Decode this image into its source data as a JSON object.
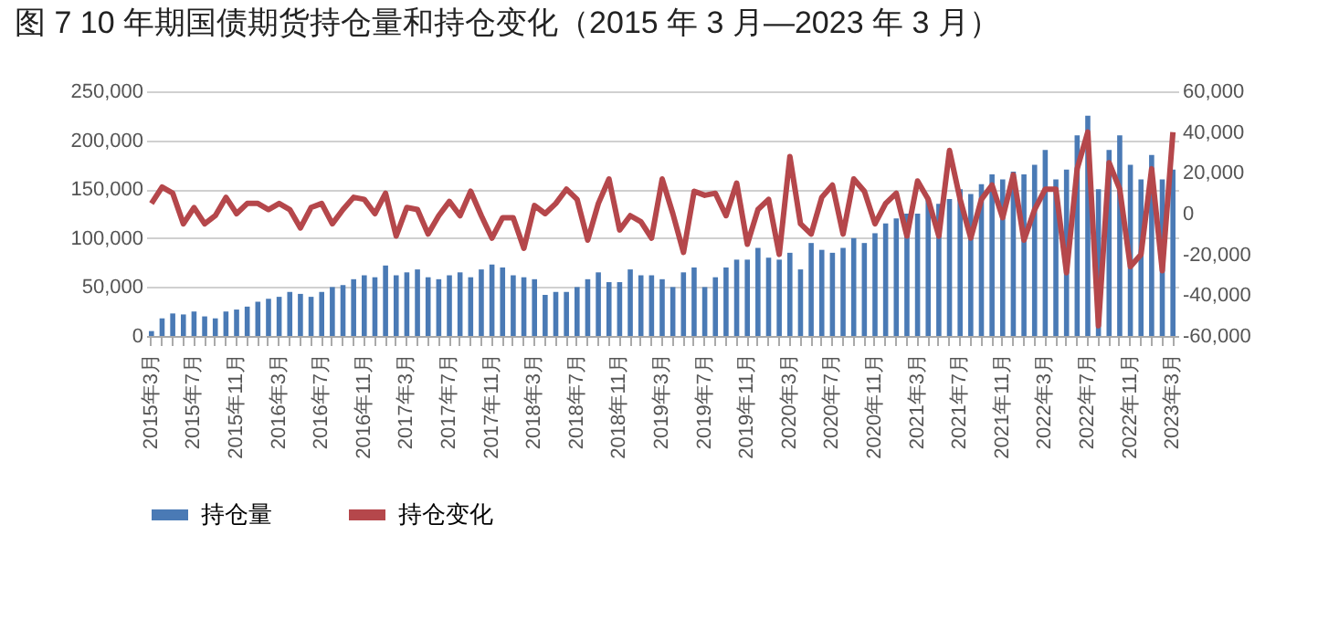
{
  "chart_data": {
    "type": "bar",
    "title": "图 7 10 年期国债期货持仓量和持仓变化（2015 年 3 月—2023 年 3 月）",
    "categories": [
      "2015年3月",
      null,
      null,
      null,
      "2015年7月",
      null,
      null,
      null,
      "2015年11月",
      null,
      null,
      null,
      "2016年3月",
      null,
      null,
      null,
      "2016年7月",
      null,
      null,
      null,
      "2016年11月",
      null,
      null,
      null,
      "2017年3月",
      null,
      null,
      null,
      "2017年7月",
      null,
      null,
      null,
      "2017年11月",
      null,
      null,
      null,
      "2018年3月",
      null,
      null,
      null,
      "2018年7月",
      null,
      null,
      null,
      "2018年11月",
      null,
      null,
      null,
      "2019年3月",
      null,
      null,
      null,
      "2019年7月",
      null,
      null,
      null,
      "2019年11月",
      null,
      null,
      null,
      "2020年3月",
      null,
      null,
      null,
      "2020年7月",
      null,
      null,
      null,
      "2020年11月",
      null,
      null,
      null,
      "2021年3月",
      null,
      null,
      null,
      "2021年7月",
      null,
      null,
      null,
      "2021年11月",
      null,
      null,
      null,
      "2022年3月",
      null,
      null,
      null,
      "2022年7月",
      null,
      null,
      null,
      "2022年11月",
      null,
      null,
      null,
      "2023年3月"
    ],
    "series": [
      {
        "name": "持仓量",
        "color": "#4a7ab5",
        "values": [
          5000,
          18000,
          23000,
          22000,
          25000,
          20000,
          18000,
          25000,
          27000,
          30000,
          35000,
          38000,
          40000,
          45000,
          43000,
          40000,
          45000,
          50000,
          52000,
          58000,
          62000,
          60000,
          72000,
          62000,
          65000,
          68000,
          60000,
          58000,
          62000,
          65000,
          60000,
          68000,
          73000,
          70000,
          62000,
          60000,
          58000,
          42000,
          45000,
          45000,
          50000,
          58000,
          65000,
          55000,
          55000,
          68000,
          62000,
          62000,
          58000,
          50000,
          65000,
          70000,
          50000,
          60000,
          70000,
          78000,
          78000,
          90000,
          80000,
          78000,
          85000,
          68000,
          95000,
          88000,
          85000,
          90000,
          100000,
          95000,
          105000,
          115000,
          120000,
          125000,
          125000,
          140000,
          135000,
          140000,
          150000,
          145000,
          155000,
          165000,
          160000,
          168000,
          165000,
          175000,
          190000,
          160000,
          170000,
          205000,
          225000,
          150000,
          190000,
          205000,
          175000,
          160000,
          185000,
          160000,
          170000
        ]
      },
      {
        "name": "持仓变化",
        "type": "line",
        "axis": "y2",
        "color": "#b5474b",
        "values": [
          5000,
          13000,
          10000,
          -5000,
          3000,
          -5000,
          -1000,
          8000,
          0,
          5000,
          5000,
          2000,
          5000,
          2000,
          -7000,
          3000,
          5000,
          -5000,
          2000,
          8000,
          7000,
          0,
          10000,
          -11000,
          3000,
          2000,
          -10000,
          -1000,
          6000,
          -1000,
          11000,
          -1000,
          -12000,
          -2000,
          -2000,
          -17000,
          4000,
          0,
          5000,
          12000,
          7000,
          -13000,
          5000,
          17000,
          -8000,
          -1000,
          -4000,
          -12000,
          17000,
          0,
          -19000,
          11000,
          9000,
          10000,
          -1000,
          15000,
          -15000,
          2000,
          7000,
          -20000,
          28000,
          -5000,
          -10000,
          8000,
          14000,
          -10000,
          17000,
          11000,
          -5000,
          5000,
          10000,
          -11000,
          16000,
          7000,
          -11000,
          31000,
          7000,
          -12000,
          7000,
          14000,
          -2000,
          19000,
          -13000,
          2000,
          12000,
          12000,
          -29000,
          22000,
          40000,
          -55000,
          25000,
          12000,
          -26000,
          -20000,
          22000,
          -28000,
          40000
        ]
      }
    ],
    "ylim": [
      0,
      250000
    ],
    "yticks": [
      0,
      {
        "value": 50000,
        "label": "50,000"
      },
      {
        "value": 100000,
        "label": "100,000"
      },
      {
        "value": 150000,
        "label": "150,000"
      },
      {
        "value": 200000,
        "label": "200,000"
      },
      {
        "value": 250000,
        "label": "250,000"
      }
    ],
    "y2lim": [
      -60000,
      60000
    ],
    "y2ticks": [
      {
        "value": -60000,
        "label": "-60,000"
      },
      {
        "value": -40000,
        "label": "-40,000"
      },
      {
        "value": -20000,
        "label": "-20,000"
      },
      0,
      {
        "value": 20000,
        "label": "20,000"
      },
      {
        "value": 40000,
        "label": "40,000"
      },
      {
        "value": 60000,
        "label": "60,000"
      }
    ],
    "grid": "y",
    "legend": "bottom"
  }
}
